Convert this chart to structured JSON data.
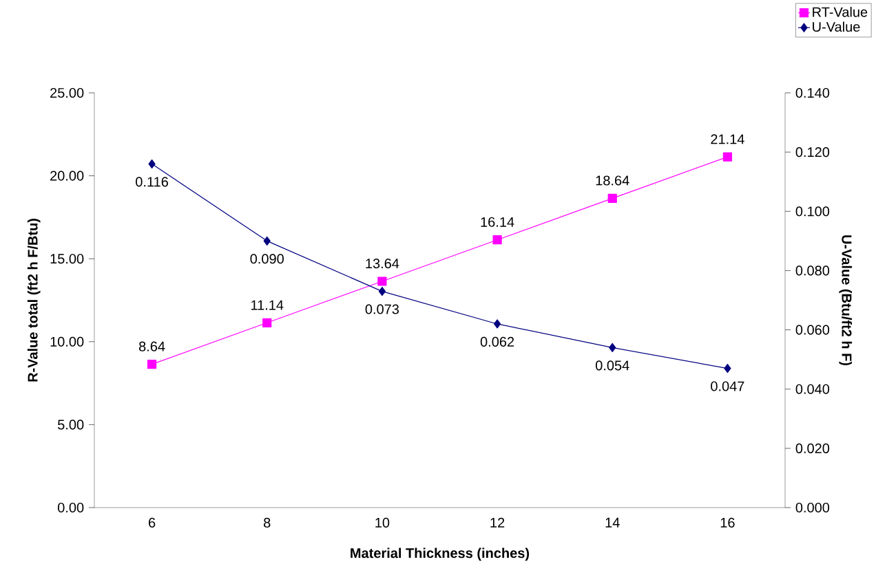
{
  "chart_data": {
    "type": "line",
    "xlabel": "Material Thickness (inches)",
    "ylabel": "R-Value total (ft2 h F/Btu)",
    "y2label": "U-Value (Btu/ft2 h F)",
    "categories": [
      "6",
      "8",
      "10",
      "12",
      "14",
      "16"
    ],
    "series": [
      {
        "name": "RT-Value",
        "color": "#ff00ff",
        "marker": "square",
        "values": [
          8.64,
          11.14,
          13.64,
          16.14,
          18.64,
          21.14
        ],
        "value_labels": [
          "8.64",
          "11.14",
          "13.64",
          "16.14",
          "18.64",
          "21.14"
        ]
      },
      {
        "name": "U-Value",
        "color": "#000080",
        "marker": "diamond",
        "axis": "y2",
        "values": [
          0.116,
          0.09,
          0.073,
          0.062,
          0.054,
          0.047
        ],
        "value_labels": [
          "0.116",
          "0.090",
          "0.073",
          "0.062",
          "0.054",
          "0.047"
        ]
      }
    ],
    "ylim": [
      0,
      25
    ],
    "yticks": [
      {
        "value": 0,
        "label": "0.00"
      },
      {
        "value": 5,
        "label": "5.00"
      },
      {
        "value": 10,
        "label": "10.00"
      },
      {
        "value": 15,
        "label": "15.00"
      },
      {
        "value": 20,
        "label": "20.00"
      },
      {
        "value": 25,
        "label": "25.00"
      }
    ],
    "y2lim": [
      0,
      0.14
    ],
    "y2ticks": [
      {
        "value": 0,
        "label": "0.000"
      },
      {
        "value": 0.02,
        "label": "0.020"
      },
      {
        "value": 0.04,
        "label": "0.040"
      },
      {
        "value": 0.06,
        "label": "0.060"
      },
      {
        "value": 0.08,
        "label": "0.080"
      },
      {
        "value": 0.1,
        "label": "0.100"
      },
      {
        "value": 0.12,
        "label": "0.120"
      },
      {
        "value": 0.14,
        "label": "0.140"
      }
    ],
    "grid": false,
    "legend": "top right"
  }
}
